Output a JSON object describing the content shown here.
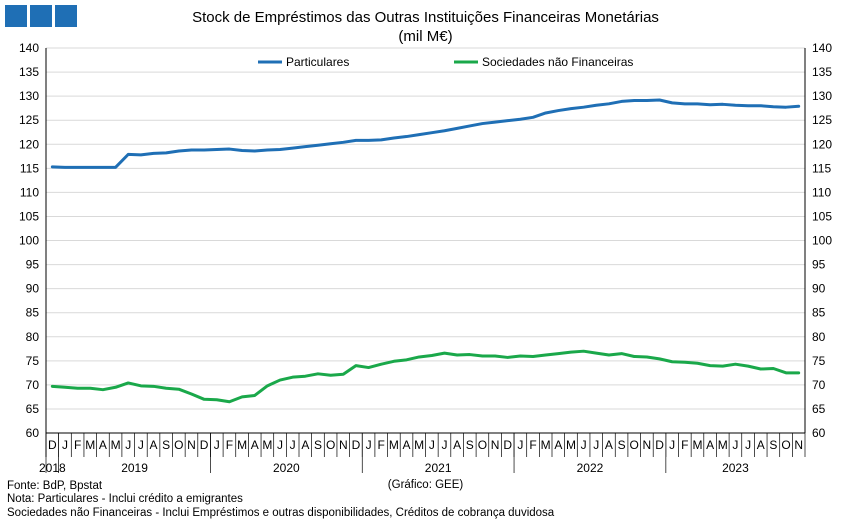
{
  "title_line1": "Stock de Empréstimos das Outras Instituições Financeiras Monetárias",
  "title_line2": "(mil M€)",
  "source": "Fonte: BdP, Bpstat",
  "note1": "Nota: Particulares - Inclui crédito a emigrantes",
  "note2": "Sociedades não Financeiras - Inclui Empréstimos e outras disponibilidades, Créditos de cobrança duvidosa",
  "chart_credit": "(Gráfico: GEE)",
  "colors": {
    "particulares": "#1f6fb5",
    "sociedades": "#1aa84a",
    "logo": "#1f6fb5"
  },
  "chart_data": {
    "type": "line",
    "title": "Stock de Empréstimos das Outras Instituições Financeiras Monetárias",
    "subtitle": "(mil M€)",
    "ylim": [
      60,
      140
    ],
    "yticks": [
      60,
      65,
      70,
      75,
      80,
      85,
      90,
      95,
      100,
      105,
      110,
      115,
      120,
      125,
      130,
      135,
      140
    ],
    "grid": "horizontal",
    "legend_position": "top-center",
    "month_labels": [
      "D",
      "J",
      "F",
      "M",
      "A",
      "M",
      "J",
      "J",
      "A",
      "S",
      "O",
      "N",
      "D",
      "J",
      "F",
      "M",
      "A",
      "M",
      "J",
      "J",
      "A",
      "S",
      "O",
      "N",
      "D",
      "J",
      "F",
      "M",
      "A",
      "M",
      "J",
      "J",
      "A",
      "S",
      "O",
      "N",
      "D",
      "J",
      "F",
      "M",
      "A",
      "M",
      "J",
      "J",
      "A",
      "S",
      "O",
      "N",
      "D",
      "J",
      "F",
      "M",
      "A",
      "M",
      "J",
      "J",
      "A",
      "S",
      "O",
      "N"
    ],
    "years": [
      {
        "label": "2018",
        "start": 0,
        "count": 1
      },
      {
        "label": "2019",
        "start": 1,
        "count": 12
      },
      {
        "label": "2020",
        "start": 13,
        "count": 12
      },
      {
        "label": "2021",
        "start": 25,
        "count": 12
      },
      {
        "label": "2022",
        "start": 37,
        "count": 12
      },
      {
        "label": "2023",
        "start": 49,
        "count": 11
      }
    ],
    "series": [
      {
        "name": "Particulares",
        "color": "#1f6fb5",
        "values": [
          115.3,
          115.2,
          115.2,
          115.2,
          115.2,
          115.2,
          117.9,
          117.8,
          118.1,
          118.2,
          118.6,
          118.8,
          118.8,
          118.9,
          119.0,
          118.7,
          118.6,
          118.8,
          118.9,
          119.2,
          119.5,
          119.8,
          120.1,
          120.4,
          120.8,
          120.8,
          120.9,
          121.3,
          121.6,
          122.0,
          122.4,
          122.8,
          123.3,
          123.8,
          124.3,
          124.6,
          124.9,
          125.2,
          125.6,
          126.5,
          127.0,
          127.4,
          127.7,
          128.1,
          128.4,
          128.9,
          129.1,
          129.1,
          129.2,
          128.6,
          128.4,
          128.4,
          128.2,
          128.3,
          128.1,
          128.0,
          128.0,
          127.8,
          127.7,
          127.9
        ]
      },
      {
        "name": "Sociedades não Financeiras",
        "color": "#1aa84a",
        "values": [
          69.7,
          69.5,
          69.3,
          69.3,
          69.0,
          69.5,
          70.4,
          69.8,
          69.7,
          69.3,
          69.1,
          68.1,
          67.0,
          66.9,
          66.5,
          67.5,
          67.8,
          69.8,
          71.0,
          71.6,
          71.8,
          72.3,
          72.0,
          72.2,
          74.0,
          73.6,
          74.3,
          74.9,
          75.2,
          75.8,
          76.1,
          76.6,
          76.2,
          76.3,
          76.0,
          76.0,
          75.7,
          76.0,
          75.9,
          76.2,
          76.5,
          76.8,
          77.0,
          76.6,
          76.2,
          76.5,
          75.9,
          75.8,
          75.4,
          74.8,
          74.7,
          74.5,
          74.0,
          73.9,
          74.3,
          73.9,
          73.3,
          73.4,
          72.5,
          72.5
        ]
      }
    ]
  }
}
